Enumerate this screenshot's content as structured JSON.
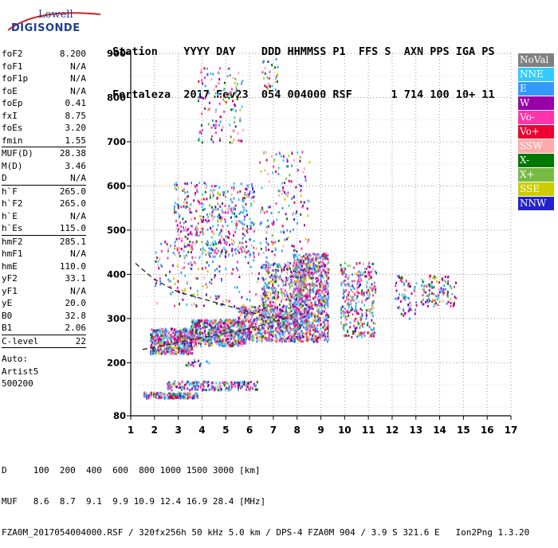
{
  "logo": {
    "line1": "Lowell",
    "line2": "DIGISONDE"
  },
  "header": {
    "line1": "Station    YYYY DAY    DDD HHMMSS P1  FFS S  AXN PPS IGA PS",
    "line2": "Fortaleza  2017 Fev23  054 004000 RSF      1 714 100 10+ 11"
  },
  "params": [
    {
      "name": "foF2",
      "value": "8.200"
    },
    {
      "name": "foF1",
      "value": "N/A"
    },
    {
      "name": "foF1p",
      "value": "N/A"
    },
    {
      "name": "foE",
      "value": "N/A"
    },
    {
      "name": "foEp",
      "value": "0.41"
    },
    {
      "name": "fxI",
      "value": "8.75"
    },
    {
      "name": "foEs",
      "value": "3.20"
    },
    {
      "name": "fmin",
      "value": "1.55",
      "sep_after": true
    },
    {
      "name": "MUF(D)",
      "value": "28.38"
    },
    {
      "name": "M(D)",
      "value": "3.46"
    },
    {
      "name": "D",
      "value": "N/A",
      "sep_after": true
    },
    {
      "name": "h`F",
      "value": "265.0"
    },
    {
      "name": "h`F2",
      "value": "265.0"
    },
    {
      "name": "h`E",
      "value": "N/A"
    },
    {
      "name": "h`Es",
      "value": "115.0",
      "sep_after": true
    },
    {
      "name": "hmF2",
      "value": "285.1"
    },
    {
      "name": "hmF1",
      "value": "N/A"
    },
    {
      "name": "hmE",
      "value": "110.0"
    },
    {
      "name": "yF2",
      "value": "33.1"
    },
    {
      "name": "yF1",
      "value": "N/A"
    },
    {
      "name": "yE",
      "value": "20.0"
    },
    {
      "name": "B0",
      "value": "32.8"
    },
    {
      "name": "B1",
      "value": "2.06",
      "sep_after": true
    },
    {
      "name": "C-level",
      "value": "22",
      "sep_after": true
    }
  ],
  "autoscale": {
    "line1": "Auto:",
    "line2": "Artist5",
    "line3": "500200"
  },
  "legend": [
    {
      "label": "NoVal",
      "color": "#808080"
    },
    {
      "label": "NNE",
      "color": "#33ccff"
    },
    {
      "label": "E",
      "color": "#3399ff"
    },
    {
      "label": "W",
      "color": "#9900aa"
    },
    {
      "label": "Vo-",
      "color": "#ff33aa"
    },
    {
      "label": "Vo+",
      "color": "#ee0033"
    },
    {
      "label": "SSW",
      "color": "#ffaaaa"
    },
    {
      "label": "X-",
      "color": "#007700"
    },
    {
      "label": "X+",
      "color": "#77bb44"
    },
    {
      "label": "SSE",
      "color": "#cccc00"
    },
    {
      "label": "NNW",
      "color": "#2222cc"
    }
  ],
  "footer": {
    "line1": "D     100  200  400  600  800 1000 1500 3000 [km]",
    "line2": "MUF   8.6  8.7  9.1  9.9 10.9 12.4 16.9 28.4 [MHz]",
    "line3": "FZA0M_2017054004000.RSF / 320fx256h 50 kHz 5.0 km / DPS-4 FZA0M 904 / 3.9 S 321.6 E   Ion2Png 1.3.20"
  },
  "chart_data": {
    "type": "scatter",
    "xlim": [
      1,
      17
    ],
    "ylim": [
      80,
      900
    ],
    "xticks": [
      1,
      2,
      3,
      4,
      5,
      6,
      7,
      8,
      9,
      10,
      11,
      12,
      13,
      14,
      15,
      16,
      17
    ],
    "yticks": [
      80,
      200,
      300,
      400,
      500,
      600,
      700,
      800,
      900
    ],
    "grid": true,
    "traces": [
      {
        "name": "ordinary",
        "color": "#222222",
        "dash": "6,4",
        "points": [
          [
            1.5,
            230
          ],
          [
            2.5,
            240
          ],
          [
            3.5,
            252
          ],
          [
            4.5,
            262
          ],
          [
            5.5,
            272
          ],
          [
            6.5,
            285
          ],
          [
            7.5,
            300
          ],
          [
            8.0,
            315
          ]
        ]
      },
      {
        "name": "upper",
        "color": "#222222",
        "dash": "6,4",
        "points": [
          [
            1.2,
            425
          ],
          [
            2,
            388
          ],
          [
            3,
            360
          ],
          [
            4,
            345
          ],
          [
            5,
            330
          ],
          [
            6,
            315
          ],
          [
            7,
            300
          ]
        ]
      }
    ],
    "clusters": [
      {
        "x": [
          1.8,
          3.6
        ],
        "y": [
          222,
          280
        ],
        "n": 520
      },
      {
        "x": [
          3.5,
          5.8
        ],
        "y": [
          240,
          300
        ],
        "n": 560
      },
      {
        "x": [
          5.5,
          8
        ],
        "y": [
          250,
          330
        ],
        "n": 560
      },
      {
        "x": [
          6.5,
          8.2
        ],
        "y": [
          280,
          430
        ],
        "n": 420
      },
      {
        "x": [
          7.8,
          9.3
        ],
        "y": [
          250,
          450
        ],
        "n": 900
      },
      {
        "x": [
          9.8,
          11.3
        ],
        "y": [
          260,
          430
        ],
        "n": 300
      },
      {
        "x": [
          12.1,
          13
        ],
        "y": [
          300,
          400
        ],
        "n": 70
      },
      {
        "x": [
          13.2,
          14.7
        ],
        "y": [
          330,
          400
        ],
        "n": 110
      },
      {
        "x": [
          2,
          7.2
        ],
        "y": [
          330,
          480
        ],
        "n": 220
      },
      {
        "x": [
          2.8,
          6.2
        ],
        "y": [
          440,
          610
        ],
        "n": 420
      },
      {
        "x": [
          6.4,
          8.5
        ],
        "y": [
          450,
          680
        ],
        "n": 150
      },
      {
        "x": [
          3.8,
          5.7
        ],
        "y": [
          700,
          870
        ],
        "n": 130
      },
      {
        "x": [
          6.5,
          7.2
        ],
        "y": [
          820,
          890
        ],
        "n": 30
      },
      {
        "x": [
          1.5,
          3.8
        ],
        "y": [
          122,
          135
        ],
        "n": 170
      },
      {
        "x": [
          2.5,
          6.3
        ],
        "y": [
          140,
          160
        ],
        "n": 200
      },
      {
        "x": [
          3.3,
          4.3
        ],
        "y": [
          195,
          210
        ],
        "n": 20
      }
    ]
  }
}
